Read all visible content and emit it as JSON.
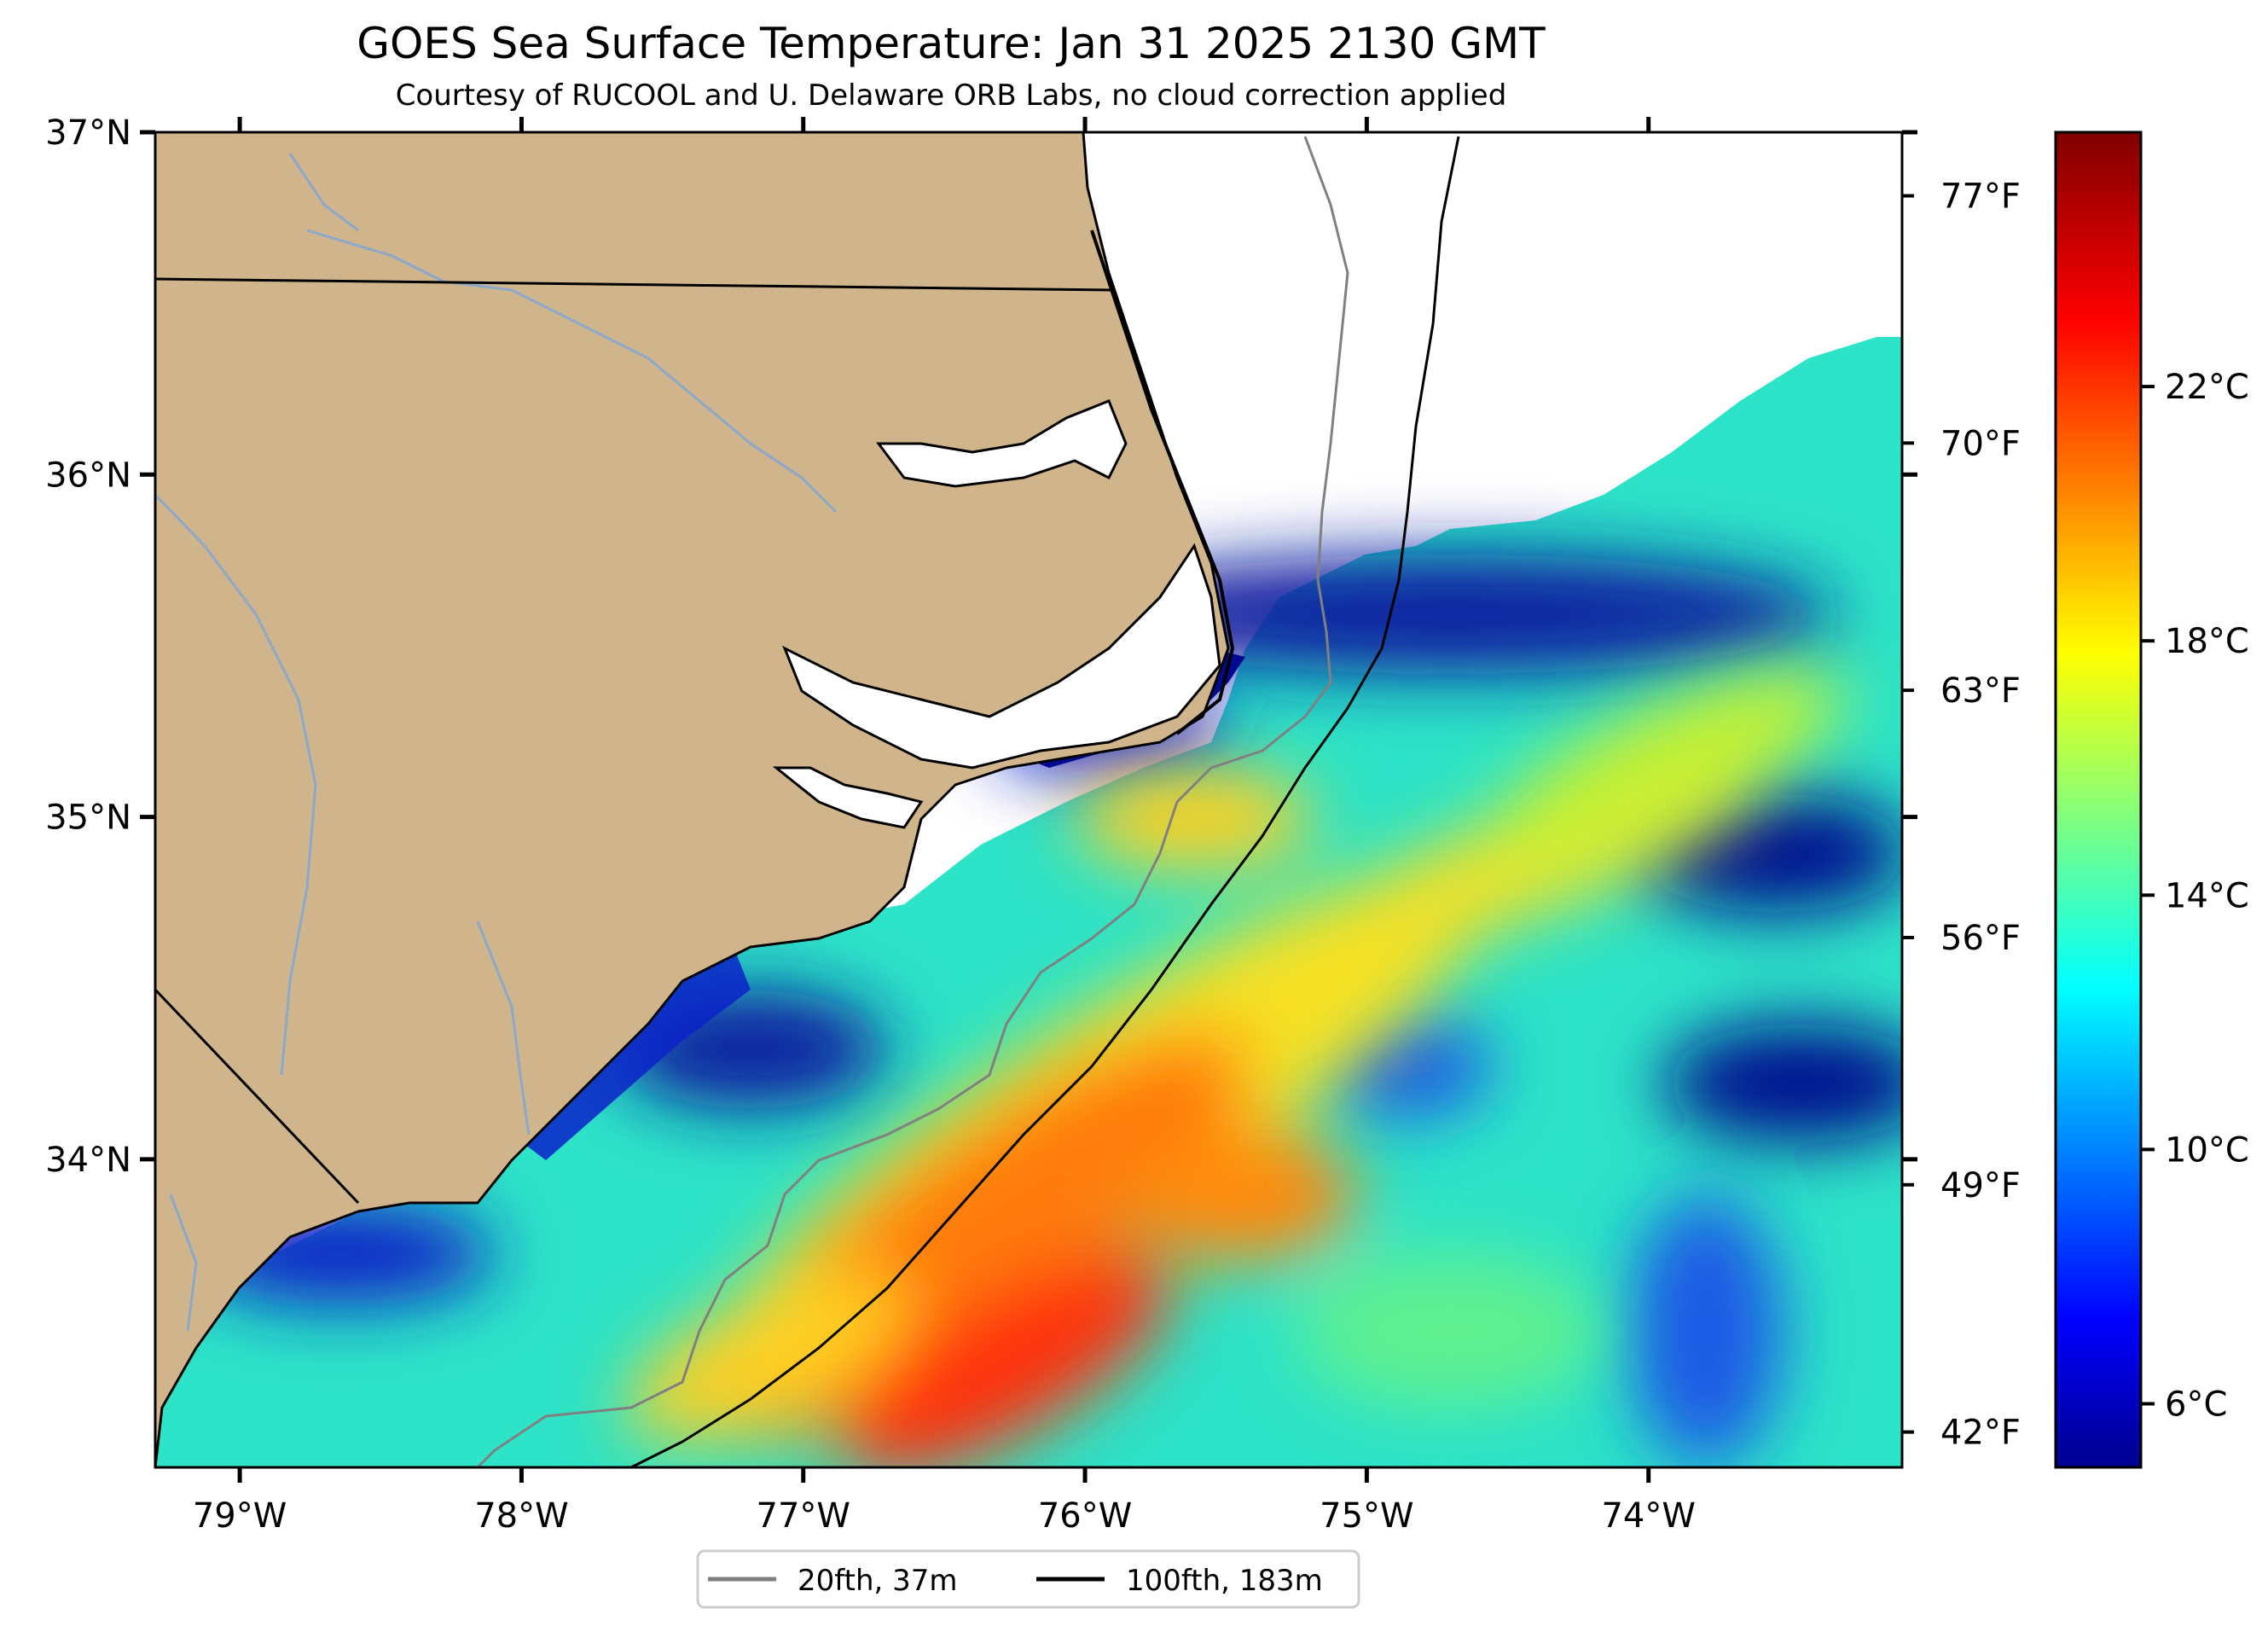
{
  "title": "GOES Sea Surface Temperature: Jan 31 2025 2130 GMT",
  "subtitle": "Courtesy of RUCOOL and U. Delaware ORB Labs, no cloud correction applied",
  "map": {
    "lon_range": [
      -79.3,
      -73.1
    ],
    "lat_range": [
      33.1,
      37.0
    ],
    "lat_ticks": [
      {
        "value": 37,
        "label": "37°N"
      },
      {
        "value": 36,
        "label": "36°N"
      },
      {
        "value": 35,
        "label": "35°N"
      },
      {
        "value": 34,
        "label": "34°N"
      }
    ],
    "lon_ticks": [
      {
        "value": -79,
        "label": "79°W"
      },
      {
        "value": -78,
        "label": "78°W"
      },
      {
        "value": -77,
        "label": "77°W"
      },
      {
        "value": -76,
        "label": "76°W"
      },
      {
        "value": -75,
        "label": "75°W"
      },
      {
        "value": -74,
        "label": "74°W"
      }
    ],
    "fahrenheit_ticks": [
      {
        "value": 77,
        "label": "77°F"
      },
      {
        "value": 70,
        "label": "70°F"
      },
      {
        "value": 63,
        "label": "63°F"
      },
      {
        "value": 56,
        "label": "56°F"
      },
      {
        "value": 49,
        "label": "49°F"
      },
      {
        "value": 42,
        "label": "42°F"
      }
    ],
    "land_color": "#d0b48c",
    "water_color": "#ffffff",
    "river_color": "#8ca8c8",
    "coast_color": "#000000"
  },
  "colorbar": {
    "range_c": [
      5.0,
      26.0
    ],
    "ticks": [
      {
        "value": 6,
        "label": "6°C"
      },
      {
        "value": 10,
        "label": "10°C"
      },
      {
        "value": 14,
        "label": "14°C"
      },
      {
        "value": 18,
        "label": "18°C"
      },
      {
        "value": 22,
        "label": "22°C"
      }
    ],
    "colormap": "jet"
  },
  "legend": {
    "items": [
      {
        "label": "20fth, 37m",
        "color": "#808080"
      },
      {
        "label": "100fth, 183m",
        "color": "#000000"
      }
    ]
  }
}
